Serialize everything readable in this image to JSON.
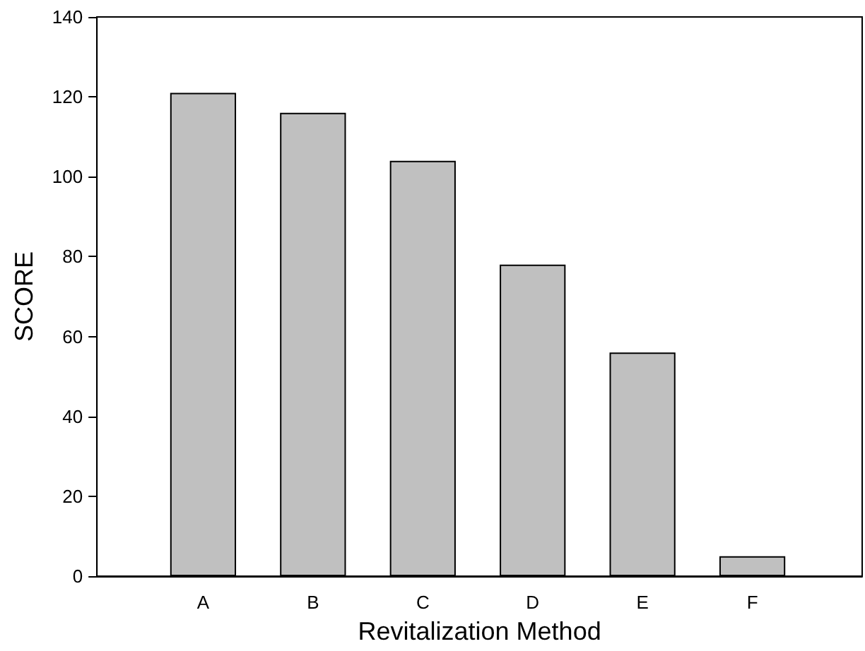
{
  "chart_data": {
    "type": "bar",
    "xlabel": "Revitalization Method",
    "ylabel": "SCORE",
    "categories": [
      "A",
      "B",
      "C",
      "D",
      "E",
      "F"
    ],
    "values": [
      121,
      116,
      104,
      78,
      56,
      5
    ],
    "color": "#c0c0c0",
    "ylim": [
      0,
      140
    ],
    "yticks": [
      0,
      20,
      40,
      60,
      80,
      100,
      120,
      140
    ],
    "grid": false
  }
}
